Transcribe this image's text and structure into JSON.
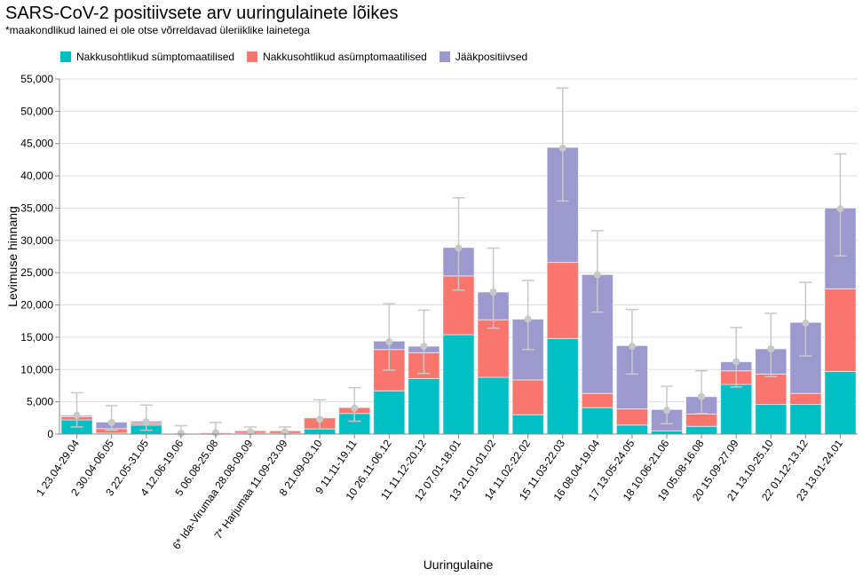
{
  "title": "SARS-CoV-2 positiivsete arv uuringulainete lõikes",
  "subtitle": "*maakondlikud lained ei ole otse võrreldavad üleriiklike lainetega",
  "colors": {
    "symptomatic": "#00BFC4",
    "asymptomatic": "#F8766D",
    "residual": "#9C99CF",
    "error": "#C8C8C8",
    "grid": "#DDDDDD",
    "axis": "#888888"
  },
  "chart_data": {
    "type": "bar",
    "stacked": true,
    "title": "SARS-CoV-2 positiivsete arv uuringulainete lõikes",
    "subtitle": "*maakondlikud lained ei ole otse võrreldavad üleriiklike lainetega",
    "xlabel": "Uuringulaine",
    "ylabel": "Levimuse hinnang",
    "ylim": [
      0,
      55000
    ],
    "yticks": [
      0,
      5000,
      10000,
      15000,
      20000,
      25000,
      30000,
      35000,
      40000,
      45000,
      50000,
      55000
    ],
    "ytick_labels": [
      "0",
      "5,000",
      "10,000",
      "15,000",
      "20,000",
      "25,000",
      "30,000",
      "35,000",
      "40,000",
      "45,000",
      "50,000",
      "55,000"
    ],
    "grid": true,
    "legend_position": "top-left",
    "categories": [
      "1 23.04-29.04",
      "2 30.04-06.05",
      "3 22.05-31.05",
      "4 12.06-19.06",
      "5 06.08-25.08",
      "6* Ida-Virumaa 28.08-09.09",
      "7* Harjumaa 11.09-23.09",
      "8 21.09-03.10",
      "9 11.11-19.11",
      "10 26.11-06.12",
      "11 11.12-20.12",
      "12 07.01-18.01",
      "13 21.01-01.02",
      "14 11.02-22.02",
      "15 11.03-22.03",
      "16 08.04-19.04",
      "17 13.05-24.05",
      "18 10.06-21.06",
      "19 05.08-16.08",
      "20 15.09-27.09",
      "21 13.10-25.10",
      "22 01.12-13.12",
      "23 13.01-24.01"
    ],
    "series": [
      {
        "name": "Nakkusohtlikud sümptomaatilised",
        "color": "#00BFC4",
        "values": [
          2200,
          150,
          1400,
          0,
          50,
          150,
          100,
          800,
          3200,
          6700,
          8600,
          15400,
          8800,
          3000,
          14800,
          4100,
          1400,
          500,
          1200,
          7700,
          4600,
          4600,
          9700
        ]
      },
      {
        "name": "Nakkusohtlikud asümptomaatilised",
        "color": "#F8766D",
        "values": [
          500,
          700,
          300,
          0,
          150,
          350,
          400,
          1700,
          900,
          6400,
          4000,
          9100,
          8900,
          5400,
          11800,
          2200,
          2500,
          0,
          1900,
          2100,
          4700,
          1700,
          12800
        ]
      },
      {
        "name": "Jääkpositiivsed",
        "color": "#9C99CF",
        "values": [
          200,
          1000,
          300,
          0,
          0,
          0,
          0,
          0,
          0,
          1300,
          1000,
          4400,
          4300,
          9400,
          17800,
          18400,
          9800,
          3300,
          2700,
          1400,
          3900,
          11000,
          12500
        ]
      }
    ],
    "point_estimate": [
      2900,
      1800,
      1900,
      100,
      200,
      350,
      350,
      2300,
      4000,
      14300,
      13600,
      28800,
      22000,
      17800,
      44300,
      24700,
      13600,
      3700,
      5800,
      11200,
      13200,
      17200,
      34900
    ],
    "error_low": [
      1100,
      600,
      600,
      0,
      0,
      100,
      100,
      800,
      2000,
      9900,
      9400,
      22300,
      16400,
      13100,
      36100,
      18900,
      9300,
      1600,
      3200,
      7300,
      8900,
      12100,
      27600
    ],
    "error_high": [
      6400,
      4400,
      4500,
      1300,
      1800,
      1100,
      1100,
      5300,
      7200,
      20200,
      19200,
      36600,
      28800,
      23800,
      53600,
      31500,
      19300,
      7400,
      9800,
      16500,
      18700,
      23500,
      43400
    ]
  }
}
